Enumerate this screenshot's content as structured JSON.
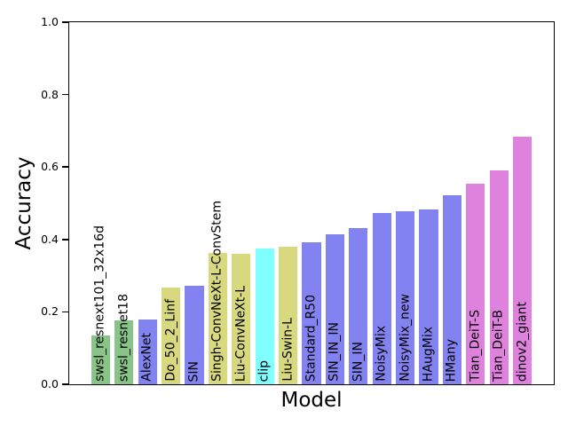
{
  "chart_data": {
    "type": "bar",
    "title": "",
    "xlabel": "Model",
    "ylabel": "Accuracy",
    "ylim": [
      0.0,
      1.0
    ],
    "yticks": [
      "0.0",
      "0.2",
      "0.4",
      "0.6",
      "0.8",
      "1.0"
    ],
    "grid": false,
    "legend_position": "none",
    "bar_label_rotation_deg": 90,
    "bar_label_color": "#000000",
    "axis_color": "#000000",
    "background_color": "#ffffff",
    "categories": [
      "swsl_resnext101_32x16d",
      "swsl_resnet18",
      "AlexNet",
      "Do_50_2_Linf",
      "SIN",
      "Singh-ConvNeXt-L-ConvStem",
      "Liu-ConvNeXt-L",
      "clip",
      "Liu-Swin-L",
      "Standard_R50",
      "SIN_IN_IN",
      "SIN_IN",
      "NoisyMix",
      "NoisyMix_new",
      "HAugMix",
      "HMany",
      "Tian_DeiT-S",
      "Tian_DeiT-B",
      "dinov2_giant"
    ],
    "values": [
      0.134,
      0.176,
      0.179,
      0.268,
      0.271,
      0.363,
      0.36,
      0.376,
      0.381,
      0.391,
      0.415,
      0.431,
      0.473,
      0.478,
      0.482,
      0.521,
      0.555,
      0.59,
      0.685
    ],
    "bar_colors": [
      "#88C388",
      "#88C388",
      "#8282F0",
      "#D8D87E",
      "#8282F0",
      "#D8D87E",
      "#D8D87E",
      "#80FFFF",
      "#D8D87E",
      "#8282F0",
      "#8282F0",
      "#8282F0",
      "#8282F0",
      "#8282F0",
      "#8282F0",
      "#8282F0",
      "#DE82DE",
      "#DE82DE",
      "#DE82DE"
    ]
  }
}
